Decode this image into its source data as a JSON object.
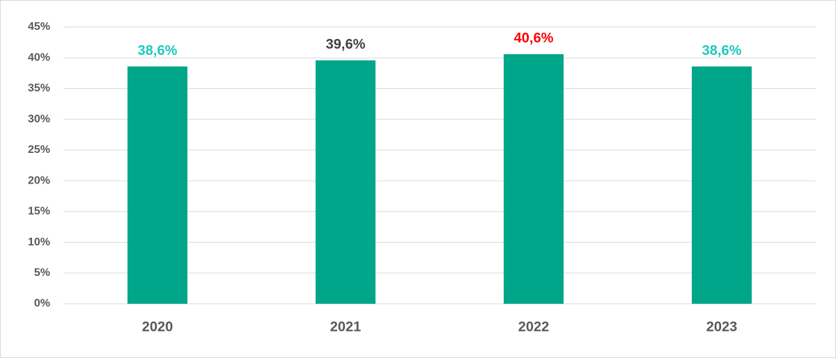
{
  "chart_data": {
    "type": "bar",
    "categories": [
      "2020",
      "2021",
      "2022",
      "2023"
    ],
    "values": [
      38.6,
      39.6,
      40.6,
      38.6
    ],
    "value_labels": [
      "38,6%",
      "39,6%",
      "40,6%",
      "38,6%"
    ],
    "value_label_colors": [
      "#1ec8c0",
      "#404040",
      "#ff0000",
      "#1ec8c0"
    ],
    "color": "#00a68a",
    "ylim": [
      0,
      45
    ],
    "yticks": [
      {
        "value": 0,
        "label": "0%"
      },
      {
        "value": 5,
        "label": "5%"
      },
      {
        "value": 10,
        "label": "10%"
      },
      {
        "value": 15,
        "label": "15%"
      },
      {
        "value": 20,
        "label": "20%"
      },
      {
        "value": 25,
        "label": "25%"
      },
      {
        "value": 30,
        "label": "30%"
      },
      {
        "value": 35,
        "label": "35%"
      },
      {
        "value": 40,
        "label": "40%"
      },
      {
        "value": 45,
        "label": "45%"
      }
    ],
    "grid": true
  }
}
